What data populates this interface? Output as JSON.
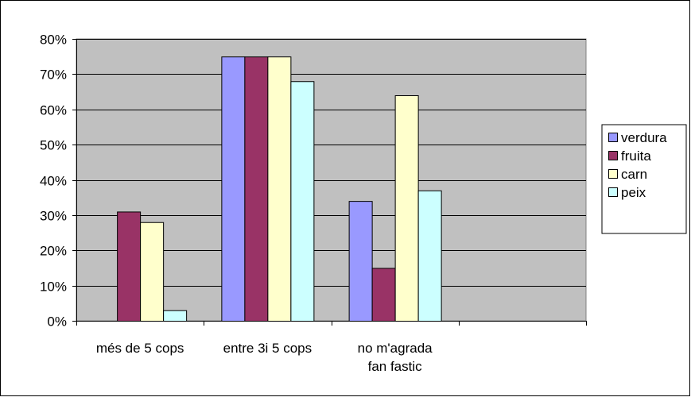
{
  "chart_data": {
    "type": "bar",
    "categories": [
      [
        "més de 5 cops"
      ],
      [
        "entre 3i 5 cops"
      ],
      [
        "no m'agrada",
        "fan fastic"
      ],
      [
        ""
      ]
    ],
    "series": [
      {
        "name": "verdura",
        "color": "#9999ff",
        "values": [
          0,
          75,
          34,
          0
        ]
      },
      {
        "name": "fruita",
        "color": "#993366",
        "values": [
          31,
          75,
          15,
          0
        ]
      },
      {
        "name": "carn",
        "color": "#ffffcc",
        "values": [
          28,
          75,
          64,
          0
        ]
      },
      {
        "name": "peix",
        "color": "#ccffff",
        "values": [
          3,
          68,
          37,
          0
        ]
      }
    ],
    "yticks": [
      "0%",
      "10%",
      "20%",
      "30%",
      "40%",
      "50%",
      "60%",
      "70%",
      "80%"
    ],
    "ylim": [
      0,
      80
    ],
    "y_unit": "%",
    "grid": true,
    "plot_background": "#c0c0c0",
    "legend_position": "right"
  }
}
